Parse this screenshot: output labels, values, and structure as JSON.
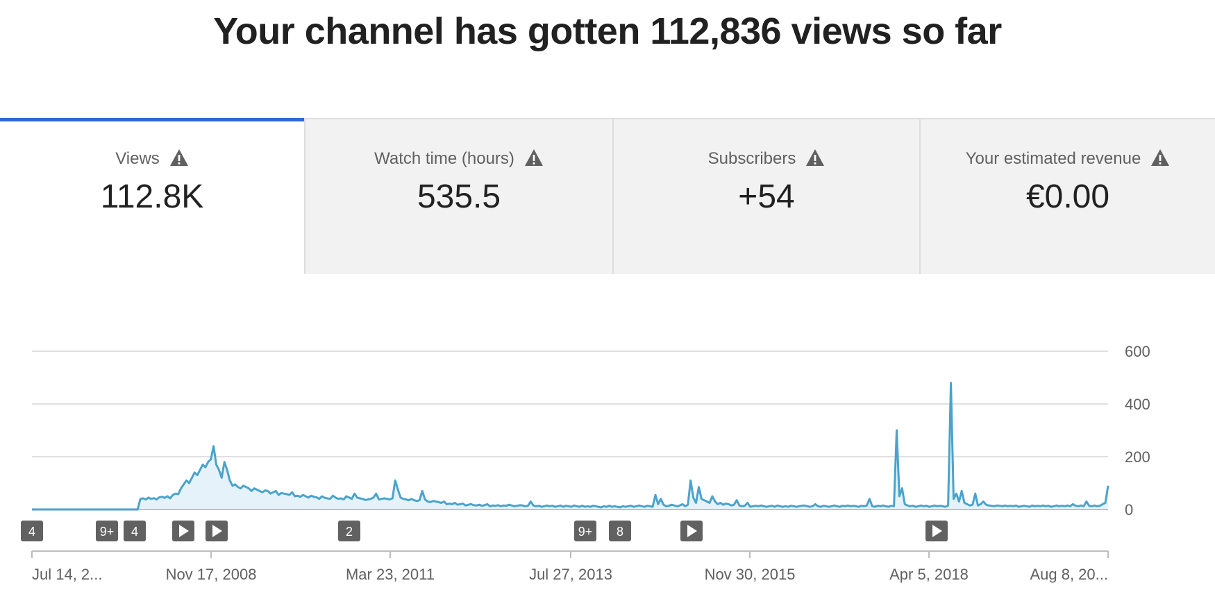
{
  "headline": "Your channel has gotten 112,836 views so far",
  "tabs": [
    {
      "label": "Views",
      "value": "112.8K",
      "active": true
    },
    {
      "label": "Watch time (hours)",
      "value": "535.5",
      "active": false
    },
    {
      "label": "Subscribers",
      "value": "+54",
      "active": false
    },
    {
      "label": "Your estimated revenue",
      "value": "€0.00",
      "active": false
    }
  ],
  "colors": {
    "accent": "#3367d6",
    "series": "#4aa3cc",
    "series_fill": "#e6f2fa",
    "marker": "#616161"
  },
  "chart_data": {
    "type": "area",
    "series": [
      {
        "values": [
          0,
          0,
          0,
          0,
          0,
          0,
          0,
          0,
          0,
          0,
          0,
          0,
          0,
          0,
          0,
          0,
          0,
          0,
          0,
          0,
          0,
          0,
          0,
          0,
          0,
          0,
          0,
          0,
          0,
          0,
          0,
          0,
          0,
          0,
          0,
          0,
          0,
          0,
          0,
          0,
          40,
          42,
          38,
          45,
          40,
          43,
          38,
          46,
          48,
          44,
          50,
          42,
          55,
          60,
          58,
          80,
          95,
          110,
          100,
          120,
          140,
          130,
          150,
          170,
          160,
          180,
          190,
          240,
          170,
          150,
          120,
          180,
          150,
          110,
          90,
          95,
          85,
          80,
          90,
          85,
          80,
          70,
          80,
          75,
          70,
          65,
          72,
          70,
          60,
          65,
          70,
          55,
          62,
          60,
          58,
          55,
          65,
          50,
          52,
          48,
          55,
          50,
          45,
          52,
          48,
          46,
          40,
          50,
          44,
          42,
          40,
          52,
          45,
          40,
          42,
          38,
          50,
          45,
          40,
          60,
          45,
          42,
          40,
          36,
          38,
          40,
          45,
          60,
          38,
          40,
          42,
          40,
          38,
          42,
          110,
          75,
          45,
          40,
          38,
          35,
          40,
          35,
          32,
          35,
          70,
          38,
          30,
          28,
          32,
          30,
          28,
          25,
          30,
          20,
          22,
          20,
          25,
          18,
          20,
          22,
          15,
          18,
          20,
          16,
          15,
          18,
          14,
          16,
          20,
          12,
          15,
          14,
          16,
          12,
          15,
          14,
          18,
          15,
          12,
          14,
          16,
          15,
          12,
          14,
          30,
          15,
          12,
          14,
          10,
          12,
          15,
          12,
          14,
          10,
          12,
          15,
          10,
          14,
          12,
          10,
          15,
          12,
          10,
          14,
          10,
          12,
          10,
          14,
          12,
          10,
          8,
          12,
          10,
          14,
          10,
          12,
          10,
          8,
          12,
          10,
          12,
          14,
          10,
          12,
          15,
          12,
          10,
          14,
          12,
          10,
          55,
          20,
          40,
          18,
          12,
          14,
          18,
          15,
          12,
          15,
          20,
          12,
          18,
          110,
          45,
          25,
          85,
          40,
          35,
          30,
          25,
          50,
          30,
          20,
          25,
          18,
          22,
          20,
          15,
          18,
          35,
          15,
          12,
          14,
          25,
          10,
          12,
          14,
          12,
          15,
          12,
          10,
          12,
          14,
          10,
          15,
          12,
          10,
          12,
          10,
          14,
          12,
          10,
          12,
          14,
          15,
          12,
          10,
          12,
          20,
          12,
          10,
          14,
          12,
          10,
          12,
          15,
          12,
          10,
          14,
          12,
          15,
          12,
          14,
          12,
          10,
          14,
          12,
          15,
          40,
          12,
          10,
          14,
          12,
          15,
          12,
          10,
          14,
          12,
          300,
          50,
          80,
          20,
          15,
          12,
          14,
          10,
          12,
          15,
          12,
          14,
          10,
          12,
          15,
          12,
          14,
          12,
          10,
          15,
          480,
          40,
          60,
          30,
          70,
          25,
          20,
          15,
          18,
          60,
          15,
          20,
          30,
          18,
          15,
          14,
          12,
          15,
          14,
          12,
          15,
          12,
          14,
          12,
          15,
          10,
          12,
          14,
          12,
          10,
          15,
          12,
          14,
          12,
          15,
          12,
          14,
          10,
          12,
          15,
          12,
          14,
          12,
          15,
          12,
          20,
          14,
          12,
          15,
          12,
          30,
          14,
          12,
          15,
          12,
          14,
          20,
          25,
          90
        ]
      }
    ],
    "xlabels": [
      "Jul 14, 2...",
      "Nov 17, 2008",
      "Mar 23, 2011",
      "Jul 27, 2013",
      "Nov 30, 2015",
      "Apr 5, 2018",
      "Aug 8, 20..."
    ],
    "yticks": [
      0,
      200,
      400,
      600
    ],
    "ylim": [
      0,
      600
    ],
    "grid": true,
    "markers": [
      "4",
      "9+",
      "4",
      "play",
      "play",
      "2",
      "9+",
      "8",
      "play",
      "play"
    ]
  }
}
